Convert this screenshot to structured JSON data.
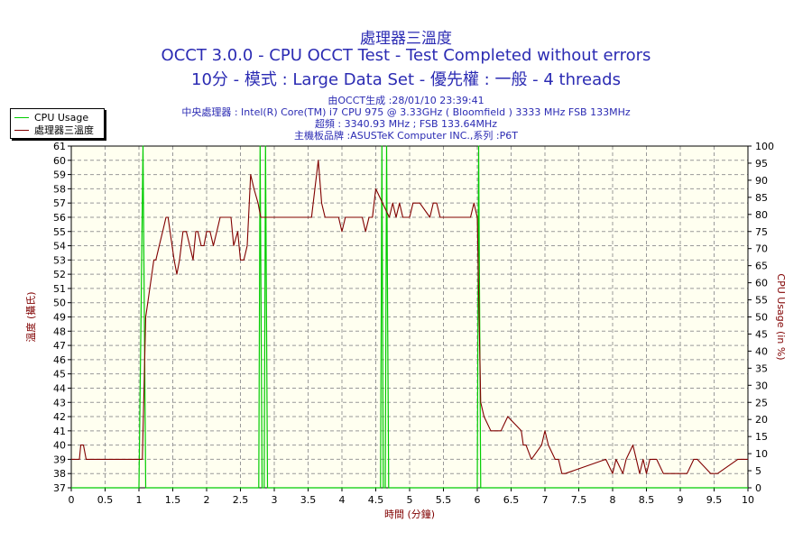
{
  "titles": {
    "line1": "處理器三溫度",
    "line2": "OCCT 3.0.0 - CPU OCCT Test - Test Completed without errors",
    "line3": "10分 - 模式 : Large Data Set - 優先權 : 一般 - 4 threads"
  },
  "info": {
    "generated": "由OCCT生成 :28/01/10 23:39:41",
    "cpu": "中央處理器 : Intel(R) Core(TM) i7 CPU 975 @ 3.33GHz ( Bloomfield ) 3333 MHz FSB 133MHz",
    "clock": "超頻 : 3340.93 MHz ; FSB 133.64MHz",
    "board": "主機板品牌 :ASUSTeK Computer INC.,系列 :P6T"
  },
  "colors": {
    "cpu_usage": "#00cc00",
    "temperature": "#800000",
    "plot_bg": "#fffff0",
    "grid": "#999999",
    "text": "#2b2bb3"
  },
  "chart_data": {
    "type": "line",
    "xlabel": "時間 (分鐘)",
    "ylabel_left": "溫度 (攝氏)",
    "ylabel_right": "CPU Usage (in %)",
    "xlim": [
      0,
      10
    ],
    "ylim_left": [
      37,
      61
    ],
    "ylim_right": [
      0,
      100
    ],
    "x_ticks": [
      "0",
      "0.5",
      "1",
      "1.5",
      "2",
      "2.5",
      "3",
      "3.5",
      "4",
      "4.5",
      "5",
      "5.5",
      "6",
      "6.5",
      "7",
      "7.5",
      "8",
      "8.5",
      "9",
      "9.5",
      "10"
    ],
    "y_ticks_left": [
      "37",
      "38",
      "39",
      "40",
      "41",
      "42",
      "43",
      "44",
      "45",
      "46",
      "47",
      "48",
      "49",
      "50",
      "51",
      "52",
      "53",
      "54",
      "55",
      "56",
      "57",
      "58",
      "59",
      "60",
      "61"
    ],
    "y_ticks_right": [
      "0",
      "5",
      "10",
      "15",
      "20",
      "25",
      "30",
      "35",
      "40",
      "45",
      "50",
      "55",
      "60",
      "65",
      "70",
      "75",
      "80",
      "85",
      "90",
      "95",
      "100"
    ],
    "grid": true,
    "legend_position": "top-left",
    "series": [
      {
        "name": "CPU Usage",
        "axis": "right",
        "x": [
          0,
          1.0,
          1.03,
          1.06,
          1.1,
          2.77,
          2.79,
          2.82,
          2.85,
          2.87,
          2.9,
          4.57,
          4.59,
          4.61,
          4.64,
          4.66,
          4.69,
          6.0,
          6.02,
          6.05,
          6.08,
          6.1,
          10
        ],
        "values": [
          0,
          0,
          50,
          100,
          0,
          0,
          100,
          0,
          0,
          100,
          0,
          0,
          100,
          0,
          0,
          100,
          0,
          0,
          100,
          0,
          0,
          0,
          0
        ]
      },
      {
        "name": "處理器三溫度",
        "axis": "left",
        "x": [
          0,
          0.12,
          0.14,
          0.18,
          0.22,
          1.05,
          1.08,
          1.1,
          1.13,
          1.16,
          1.19,
          1.22,
          1.25,
          1.3,
          1.35,
          1.4,
          1.43,
          1.46,
          1.52,
          1.56,
          1.6,
          1.65,
          1.7,
          1.75,
          1.8,
          1.84,
          1.87,
          1.92,
          1.96,
          2.0,
          2.05,
          2.1,
          2.15,
          2.2,
          2.25,
          2.3,
          2.36,
          2.4,
          2.46,
          2.5,
          2.55,
          2.6,
          2.65,
          2.7,
          2.76,
          2.8,
          2.85,
          2.9,
          2.95,
          3.0,
          3.5,
          3.55,
          3.6,
          3.65,
          3.7,
          3.75,
          3.8,
          3.95,
          4.0,
          4.05,
          4.3,
          4.35,
          4.4,
          4.45,
          4.5,
          4.7,
          4.75,
          4.8,
          4.85,
          4.9,
          5.0,
          5.05,
          5.1,
          5.15,
          5.3,
          5.35,
          5.4,
          5.45,
          5.55,
          5.6,
          5.9,
          5.95,
          6.0,
          6.05,
          6.1,
          6.2,
          6.3,
          6.35,
          6.45,
          6.65,
          6.68,
          6.72,
          6.8,
          6.95,
          7.0,
          7.05,
          7.15,
          7.2,
          7.25,
          7.3,
          7.9,
          8.0,
          8.05,
          8.15,
          8.2,
          8.3,
          8.35,
          8.4,
          8.45,
          8.5,
          8.55,
          8.6,
          8.65,
          8.75,
          9.1,
          9.2,
          9.25,
          9.45,
          9.55,
          9.85,
          9.9,
          10
        ],
        "values": [
          39,
          39,
          40,
          40,
          39,
          39,
          45,
          49,
          50,
          51,
          52,
          53,
          53,
          54,
          55,
          56,
          56,
          55,
          53,
          52,
          53,
          55,
          55,
          54,
          53,
          55,
          55,
          54,
          54,
          55,
          55,
          54,
          55,
          56,
          56,
          56,
          56,
          54,
          55,
          53,
          53,
          54,
          59,
          58,
          57,
          56,
          56,
          56,
          56,
          56,
          56,
          56,
          58,
          60,
          57,
          56,
          56,
          56,
          55,
          56,
          56,
          55,
          56,
          56,
          58,
          56,
          57,
          56,
          57,
          56,
          56,
          57,
          57,
          57,
          56,
          57,
          57,
          56,
          56,
          56,
          56,
          57,
          56,
          43,
          42,
          41,
          41,
          41,
          42,
          41,
          40,
          40,
          39,
          40,
          41,
          40,
          39,
          39,
          38,
          38,
          39,
          38,
          39,
          38,
          39,
          40,
          39,
          38,
          39,
          38,
          39,
          39,
          39,
          38,
          38,
          39,
          39,
          38,
          38,
          39,
          39,
          39
        ]
      }
    ]
  }
}
